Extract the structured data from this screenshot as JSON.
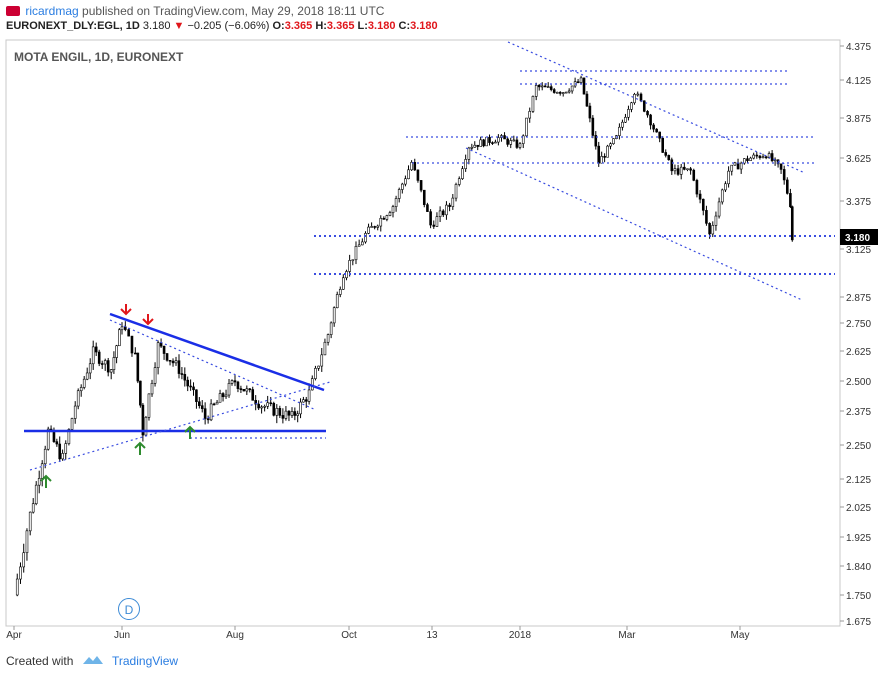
{
  "publish": {
    "user": "ricardmag",
    "text": "published on TradingView.com, May 29, 2018 18:11 UTC"
  },
  "ohlc": {
    "symbol": "EURONEXT_DLY:EGL, 1D",
    "last": "3.180",
    "change": "−0.205 (−6.06%)",
    "o_label": "O:",
    "o": "3.365",
    "h_label": "H:",
    "h": "3.365",
    "l_label": "L:",
    "l": "3.180",
    "c_label": "C:",
    "c": "3.180"
  },
  "chart_label": "MOTA ENGIL, 1D, EURONEXT",
  "event_badge": "D",
  "footer": {
    "created_with": "Created with",
    "brand": "TradingView"
  },
  "colors": {
    "candle": "#000000",
    "trendline": "#1a2ee6",
    "dotted": "#3a4de0",
    "arrow_down": "#e0161b",
    "arrow_up": "#2e8b2e",
    "price_tag_bg": "#000000"
  },
  "chart_data": {
    "type": "candlestick",
    "y_ticks": [
      "4.375",
      "4.125",
      "3.875",
      "3.625",
      "3.375",
      "3.125",
      "2.875",
      "2.750",
      "2.625",
      "2.500",
      "2.375",
      "2.250",
      "2.125",
      "2.025",
      "1.925",
      "1.840",
      "1.750",
      "1.675"
    ],
    "x_ticks": [
      "Apr",
      "Jun",
      "Aug",
      "Oct",
      "13",
      "2018",
      "Mar",
      "May"
    ],
    "last_price_tag": "3.180",
    "close_path": [
      {
        "t": "Apr 1",
        "v": 1.75
      },
      {
        "t": "Apr 10",
        "v": 2.0
      },
      {
        "t": "Apr 20",
        "v": 2.3
      },
      {
        "t": "Apr 28",
        "v": 2.2
      },
      {
        "t": "May 5",
        "v": 2.4
      },
      {
        "t": "May 15",
        "v": 2.62
      },
      {
        "t": "May 25",
        "v": 2.55
      },
      {
        "t": "Jun 1",
        "v": 2.75
      },
      {
        "t": "Jun 8",
        "v": 2.6
      },
      {
        "t": "Jun 12",
        "v": 2.3
      },
      {
        "t": "Jun 20",
        "v": 2.65
      },
      {
        "t": "Jul 1",
        "v": 2.55
      },
      {
        "t": "Jul 15",
        "v": 2.35
      },
      {
        "t": "Aug 1",
        "v": 2.5
      },
      {
        "t": "Aug 15",
        "v": 2.4
      },
      {
        "t": "Sep 1",
        "v": 2.35
      },
      {
        "t": "Sep 10",
        "v": 2.45
      },
      {
        "t": "Sep 20",
        "v": 2.7
      },
      {
        "t": "Sep 28",
        "v": 3.0
      },
      {
        "t": "Oct 10",
        "v": 3.2
      },
      {
        "t": "Oct 25",
        "v": 3.35
      },
      {
        "t": "Nov 5",
        "v": 3.6
      },
      {
        "t": "Nov 15",
        "v": 3.25
      },
      {
        "t": "Nov 25",
        "v": 3.35
      },
      {
        "t": "Dec 5",
        "v": 3.7
      },
      {
        "t": "Dec 20",
        "v": 3.75
      },
      {
        "t": "Jan 1",
        "v": 3.7
      },
      {
        "t": "Jan 10",
        "v": 4.08
      },
      {
        "t": "Jan 25",
        "v": 4.05
      },
      {
        "t": "Feb 5",
        "v": 4.12
      },
      {
        "t": "Feb 15",
        "v": 3.6
      },
      {
        "t": "Feb 25",
        "v": 3.75
      },
      {
        "t": "Mar 5",
        "v": 4.05
      },
      {
        "t": "Mar 12",
        "v": 3.9
      },
      {
        "t": "Mar 25",
        "v": 3.55
      },
      {
        "t": "Apr 5",
        "v": 3.55
      },
      {
        "t": "Apr 15",
        "v": 3.2
      },
      {
        "t": "Apr 25",
        "v": 3.55
      },
      {
        "t": "May 5",
        "v": 3.62
      },
      {
        "t": "May 15",
        "v": 3.65
      },
      {
        "t": "May 23",
        "v": 3.55
      },
      {
        "t": "May 28",
        "v": 3.365
      },
      {
        "t": "May 29",
        "v": 3.18
      }
    ]
  }
}
